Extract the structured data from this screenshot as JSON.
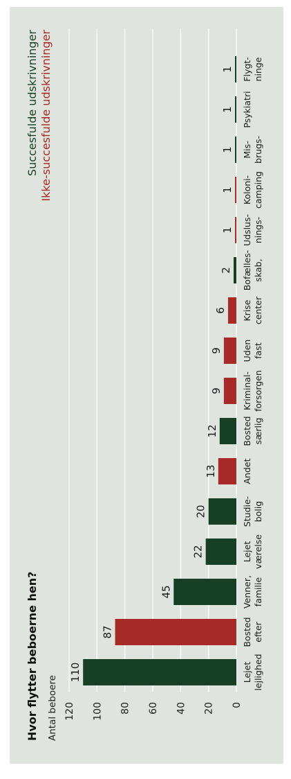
{
  "colors": {
    "background": "#dfe4df",
    "successful": "#163f25",
    "unsuccessful": "#a62a26"
  },
  "chart_data": {
    "type": "bar",
    "title": "Hvor flytter beboerne hen?",
    "ylabel": "Antal beboere",
    "ylim": [
      0,
      120
    ],
    "yticks": [
      0,
      20,
      40,
      60,
      80,
      100,
      120
    ],
    "grid": true,
    "legend_position": "top-right",
    "series": [
      {
        "name": "Succesfulde udskrivninger",
        "color": "#163f25"
      },
      {
        "name": "Ikke-succesfulde udskrivninger",
        "color": "#a62a26"
      }
    ],
    "categories": [
      {
        "line1": "Lejet",
        "line2": "lejlighed",
        "value": 110,
        "series": 0
      },
      {
        "line1": "Bosted",
        "line2": "efter",
        "value": 87,
        "series": 1
      },
      {
        "line1": "Venner,",
        "line2": "familie",
        "value": 45,
        "series": 0
      },
      {
        "line1": "Lejet",
        "line2": "værelse",
        "value": 22,
        "series": 0
      },
      {
        "line1": "Studie-",
        "line2": "bolig",
        "value": 20,
        "series": 0
      },
      {
        "line1": "Andet",
        "line2": "",
        "value": 13,
        "series": 1
      },
      {
        "line1": "Bosted",
        "line2": "særlig",
        "value": 12,
        "series": 0
      },
      {
        "line1": "Kriminal-",
        "line2": "forsorgen",
        "value": 9,
        "series": 1
      },
      {
        "line1": "Uden",
        "line2": "fast",
        "value": 9,
        "series": 1
      },
      {
        "line1": "Krise",
        "line2": "center",
        "value": 6,
        "series": 1
      },
      {
        "line1": "Bofælles-",
        "line2": "skab,",
        "value": 2,
        "series": 0
      },
      {
        "line1": "Udslus-",
        "line2": "nings-",
        "value": 1,
        "series": 1
      },
      {
        "line1": "Koloni-",
        "line2": "camping",
        "value": 1,
        "series": 1
      },
      {
        "line1": "Mis-",
        "line2": "brugs-",
        "value": 1,
        "series": 0
      },
      {
        "line1": "Psykiatri",
        "line2": "",
        "value": 1,
        "series": 0
      },
      {
        "line1": "Flygt-",
        "line2": "ninge",
        "value": 1,
        "series": 0
      }
    ]
  }
}
